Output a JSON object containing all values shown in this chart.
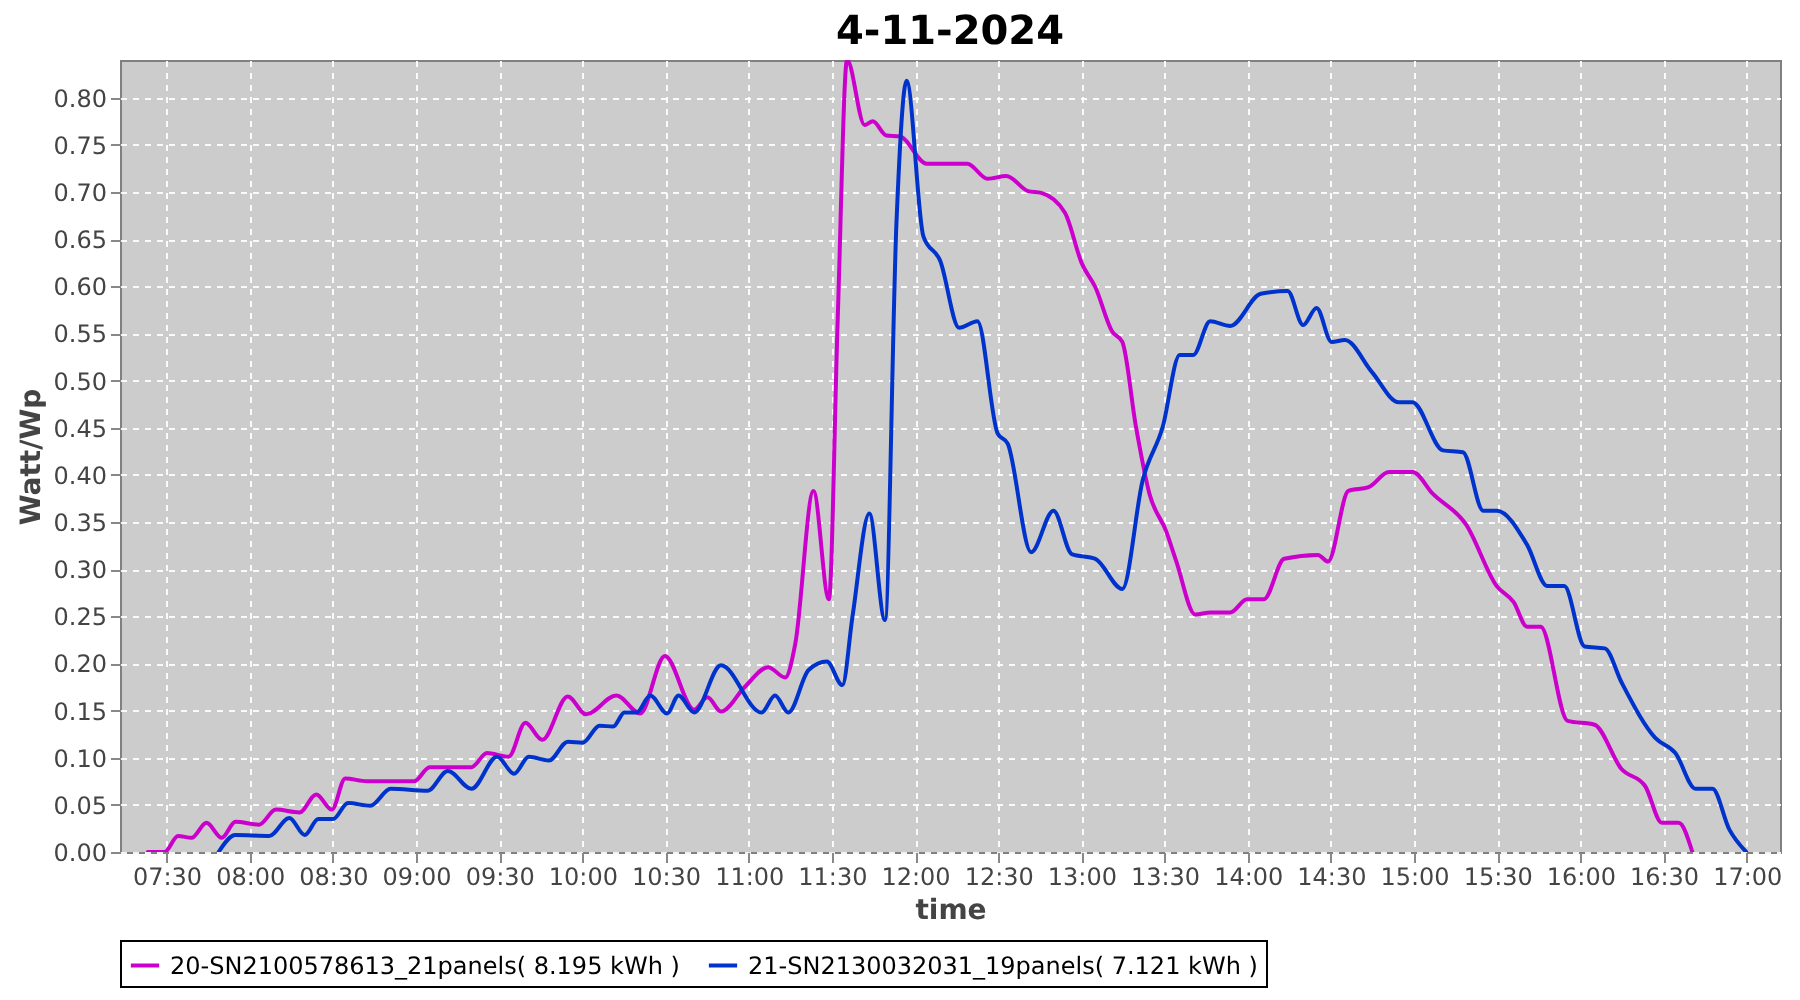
{
  "chart_data": {
    "type": "line",
    "title": "4-11-2024",
    "xlabel": "time",
    "ylabel": "Watt/Wp",
    "grid": true,
    "legend": "bottom",
    "line_style": "solid",
    "xlim": [
      7.22,
      17.2
    ],
    "ylim": [
      0,
      0.84
    ],
    "xticks": [
      {
        "value": 7.5,
        "label": "07:30"
      },
      {
        "value": 8,
        "label": "08:00"
      },
      {
        "value": 8.5,
        "label": "08:30"
      },
      {
        "value": 9,
        "label": "09:00"
      },
      {
        "value": 9.5,
        "label": "09:30"
      },
      {
        "value": 10,
        "label": "10:00"
      },
      {
        "value": 10.5,
        "label": "10:30"
      },
      {
        "value": 11,
        "label": "11:00"
      },
      {
        "value": 11.5,
        "label": "11:30"
      },
      {
        "value": 12,
        "label": "12:00"
      },
      {
        "value": 12.5,
        "label": "12:30"
      },
      {
        "value": 13,
        "label": "13:00"
      },
      {
        "value": 13.5,
        "label": "13:30"
      },
      {
        "value": 14,
        "label": "14:00"
      },
      {
        "value": 14.5,
        "label": "14:30"
      },
      {
        "value": 15,
        "label": "15:00"
      },
      {
        "value": 15.5,
        "label": "15:30"
      },
      {
        "value": 16,
        "label": "16:00"
      },
      {
        "value": 16.5,
        "label": "16:30"
      },
      {
        "value": 17,
        "label": "17:00"
      }
    ],
    "yticks": [
      {
        "value": 0,
        "label": "0.00"
      },
      {
        "value": 0.05,
        "label": "0.05"
      },
      {
        "value": 0.1,
        "label": "0.10"
      },
      {
        "value": 0.15,
        "label": "0.15"
      },
      {
        "value": 0.2,
        "label": "0.20"
      },
      {
        "value": 0.25,
        "label": "0.25"
      },
      {
        "value": 0.3,
        "label": "0.30"
      },
      {
        "value": 0.35,
        "label": "0.35"
      },
      {
        "value": 0.4,
        "label": "0.40"
      },
      {
        "value": 0.45,
        "label": "0.45"
      },
      {
        "value": 0.5,
        "label": "0.50"
      },
      {
        "value": 0.55,
        "label": "0.55"
      },
      {
        "value": 0.6,
        "label": "0.60"
      },
      {
        "value": 0.65,
        "label": "0.65"
      },
      {
        "value": 0.7,
        "label": "0.70"
      },
      {
        "value": 0.75,
        "label": "0.75"
      },
      {
        "value": 0.8,
        "label": "0.80"
      }
    ],
    "series": [
      {
        "name": "20-SN2100578613_21panels( 8.195 kWh )",
        "color": "#cc00cc",
        "x": [
          7.387,
          7.488,
          7.569,
          7.65,
          7.74,
          7.832,
          7.914,
          8.056,
          8.157,
          8.299,
          8.4,
          8.494,
          8.574,
          8.704,
          8.988,
          9.082,
          9.333,
          9.426,
          9.556,
          9.657,
          9.759,
          9.912,
          10.022,
          10.204,
          10.347,
          10.496,
          10.672,
          10.752,
          10.833,
          10.976,
          11.117,
          11.219,
          11.28,
          11.389,
          11.482,
          11.535,
          11.591,
          11.697,
          11.746,
          11.827,
          11.908,
          12.071,
          12.314,
          12.436,
          12.549,
          12.679,
          12.759,
          12.901,
          13.003,
          13.084,
          13.185,
          13.246,
          13.328,
          13.409,
          13.51,
          13.571,
          13.684,
          13.774,
          13.895,
          13.996,
          14.097,
          14.219,
          14.422,
          14.483,
          14.605,
          14.727,
          14.849,
          14.991,
          15.112,
          15.314,
          15.497,
          15.599,
          15.679,
          15.761,
          15.923,
          16.085,
          16.247,
          16.389,
          16.49,
          16.591,
          16.673
        ],
        "values": [
          0,
          0,
          0.017,
          0.015,
          0.031,
          0.015,
          0.032,
          0.029,
          0.045,
          0.042,
          0.061,
          0.045,
          0.078,
          0.075,
          0.075,
          0.09,
          0.09,
          0.105,
          0.101,
          0.137,
          0.119,
          0.165,
          0.146,
          0.166,
          0.147,
          0.208,
          0.151,
          0.164,
          0.149,
          0.175,
          0.196,
          0.185,
          0.221,
          0.383,
          0.268,
          0.566,
          0.84,
          0.771,
          0.775,
          0.76,
          0.759,
          0.73,
          0.73,
          0.714,
          0.717,
          0.701,
          0.699,
          0.678,
          0.624,
          0.599,
          0.552,
          0.541,
          0.451,
          0.38,
          0.34,
          0.308,
          0.252,
          0.254,
          0.254,
          0.268,
          0.268,
          0.311,
          0.315,
          0.308,
          0.383,
          0.387,
          0.403,
          0.403,
          0.38,
          0.347,
          0.282,
          0.265,
          0.239,
          0.239,
          0.139,
          0.135,
          0.088,
          0.07,
          0.031,
          0.031,
          0
        ]
      },
      {
        "name": "21-SN2130032031_19panels( 7.121 kWh )",
        "color": "#0033cc",
        "x": [
          7.813,
          7.914,
          8.117,
          8.238,
          8.331,
          8.412,
          8.501,
          8.591,
          8.725,
          8.847,
          9.069,
          9.191,
          9.333,
          9.487,
          9.589,
          9.678,
          9.799,
          9.912,
          10.002,
          10.103,
          10.185,
          10.253,
          10.326,
          10.408,
          10.509,
          10.578,
          10.672,
          10.833,
          11.077,
          11.158,
          11.238,
          11.36,
          11.47,
          11.563,
          11.624,
          11.725,
          11.819,
          11.888,
          11.949,
          12.05,
          12.151,
          12.265,
          12.375,
          12.496,
          12.557,
          12.698,
          12.832,
          12.942,
          13.084,
          13.246,
          13.368,
          13.489,
          13.591,
          13.672,
          13.774,
          13.895,
          14.078,
          14.24,
          14.333,
          14.414,
          14.504,
          14.584,
          14.747,
          14.908,
          14.99,
          15.173,
          15.294,
          15.416,
          15.497,
          15.679,
          15.801,
          15.903,
          16.025,
          16.147,
          16.247,
          16.45,
          16.571,
          16.693,
          16.794,
          16.895,
          16.997
        ],
        "values": [
          0,
          0.018,
          0.017,
          0.036,
          0.018,
          0.035,
          0.035,
          0.052,
          0.049,
          0.067,
          0.065,
          0.086,
          0.067,
          0.101,
          0.083,
          0.101,
          0.097,
          0.117,
          0.116,
          0.134,
          0.133,
          0.148,
          0.148,
          0.166,
          0.147,
          0.166,
          0.148,
          0.198,
          0.148,
          0.166,
          0.148,
          0.193,
          0.202,
          0.177,
          0.25,
          0.359,
          0.246,
          0.667,
          0.818,
          0.653,
          0.627,
          0.556,
          0.563,
          0.444,
          0.433,
          0.318,
          0.362,
          0.316,
          0.311,
          0.279,
          0.394,
          0.451,
          0.527,
          0.527,
          0.563,
          0.558,
          0.592,
          0.595,
          0.559,
          0.577,
          0.541,
          0.543,
          0.509,
          0.477,
          0.477,
          0.426,
          0.424,
          0.362,
          0.362,
          0.326,
          0.282,
          0.282,
          0.218,
          0.216,
          0.18,
          0.121,
          0.105,
          0.067,
          0.067,
          0.024,
          0
        ]
      }
    ]
  }
}
